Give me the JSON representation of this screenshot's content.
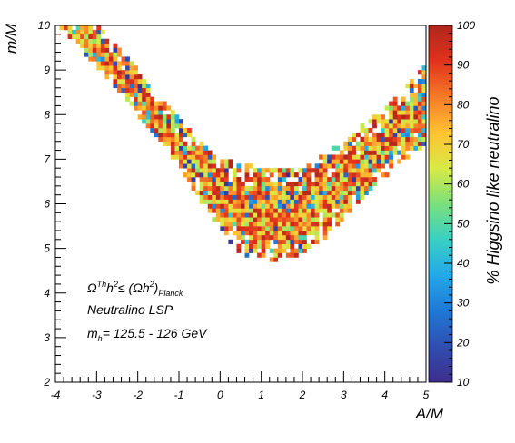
{
  "chart_data": {
    "type": "heatmap",
    "xlabel": "A/M",
    "ylabel": "m/M",
    "xlim": [
      -4,
      5
    ],
    "ylim": [
      2,
      10
    ],
    "x_ticks": [
      "-4",
      "-3",
      "-2",
      "-1",
      "0",
      "1",
      "2",
      "3",
      "4",
      "5"
    ],
    "y_ticks": [
      "2",
      "3",
      "4",
      "5",
      "6",
      "7",
      "8",
      "9",
      "10"
    ],
    "colorbar": {
      "label": "% Higgsino like neutralino",
      "range": [
        10,
        100
      ],
      "ticks": [
        "10",
        "20",
        "30",
        "40",
        "50",
        "60",
        "70",
        "80",
        "90",
        "100"
      ],
      "palette": [
        "#3f2d8c",
        "#2f4fb0",
        "#1f78d6",
        "#23a9e8",
        "#39d0c4",
        "#7be07c",
        "#d9ea45",
        "#ffc232",
        "#f77a27",
        "#e0321c",
        "#b0261c"
      ]
    },
    "bin_width": 0.1,
    "bin_height": 0.1,
    "band": {
      "description_points_upper": [
        [
          -4,
          10
        ],
        [
          -3,
          10
        ],
        [
          -2,
          9.0
        ],
        [
          -1,
          7.9
        ],
        [
          0,
          7.0
        ],
        [
          0.5,
          6.9
        ],
        [
          1,
          6.8
        ],
        [
          2,
          6.8
        ],
        [
          3,
          7.4
        ],
        [
          4,
          8.2
        ],
        [
          4.5,
          8.6
        ],
        [
          5,
          9.2
        ]
      ],
      "description_points_lower": [
        [
          -4,
          10
        ],
        [
          -3,
          9.0
        ],
        [
          -2,
          8.0
        ],
        [
          -1,
          6.8
        ],
        [
          0,
          5.4
        ],
        [
          0.5,
          4.9
        ],
        [
          1,
          4.7
        ],
        [
          2,
          4.8
        ],
        [
          3,
          5.6
        ],
        [
          4,
          6.6
        ],
        [
          4.5,
          7.0
        ],
        [
          5,
          7.3
        ]
      ]
    },
    "grid": false
  },
  "annotations": {
    "line1_main": "Ω",
    "line1_sup1": "Th",
    "line1_mid": "h",
    "line1_sup2": "2",
    "line1_le": "≤ (Ωh",
    "line1_sup3": "2",
    "line1_close": ")",
    "line1_sub": "Planck",
    "line2": "Neutralino LSP",
    "line3_main": "m",
    "line3_sub": "h",
    "line3_rest": "= 125.5 - 126 GeV"
  }
}
